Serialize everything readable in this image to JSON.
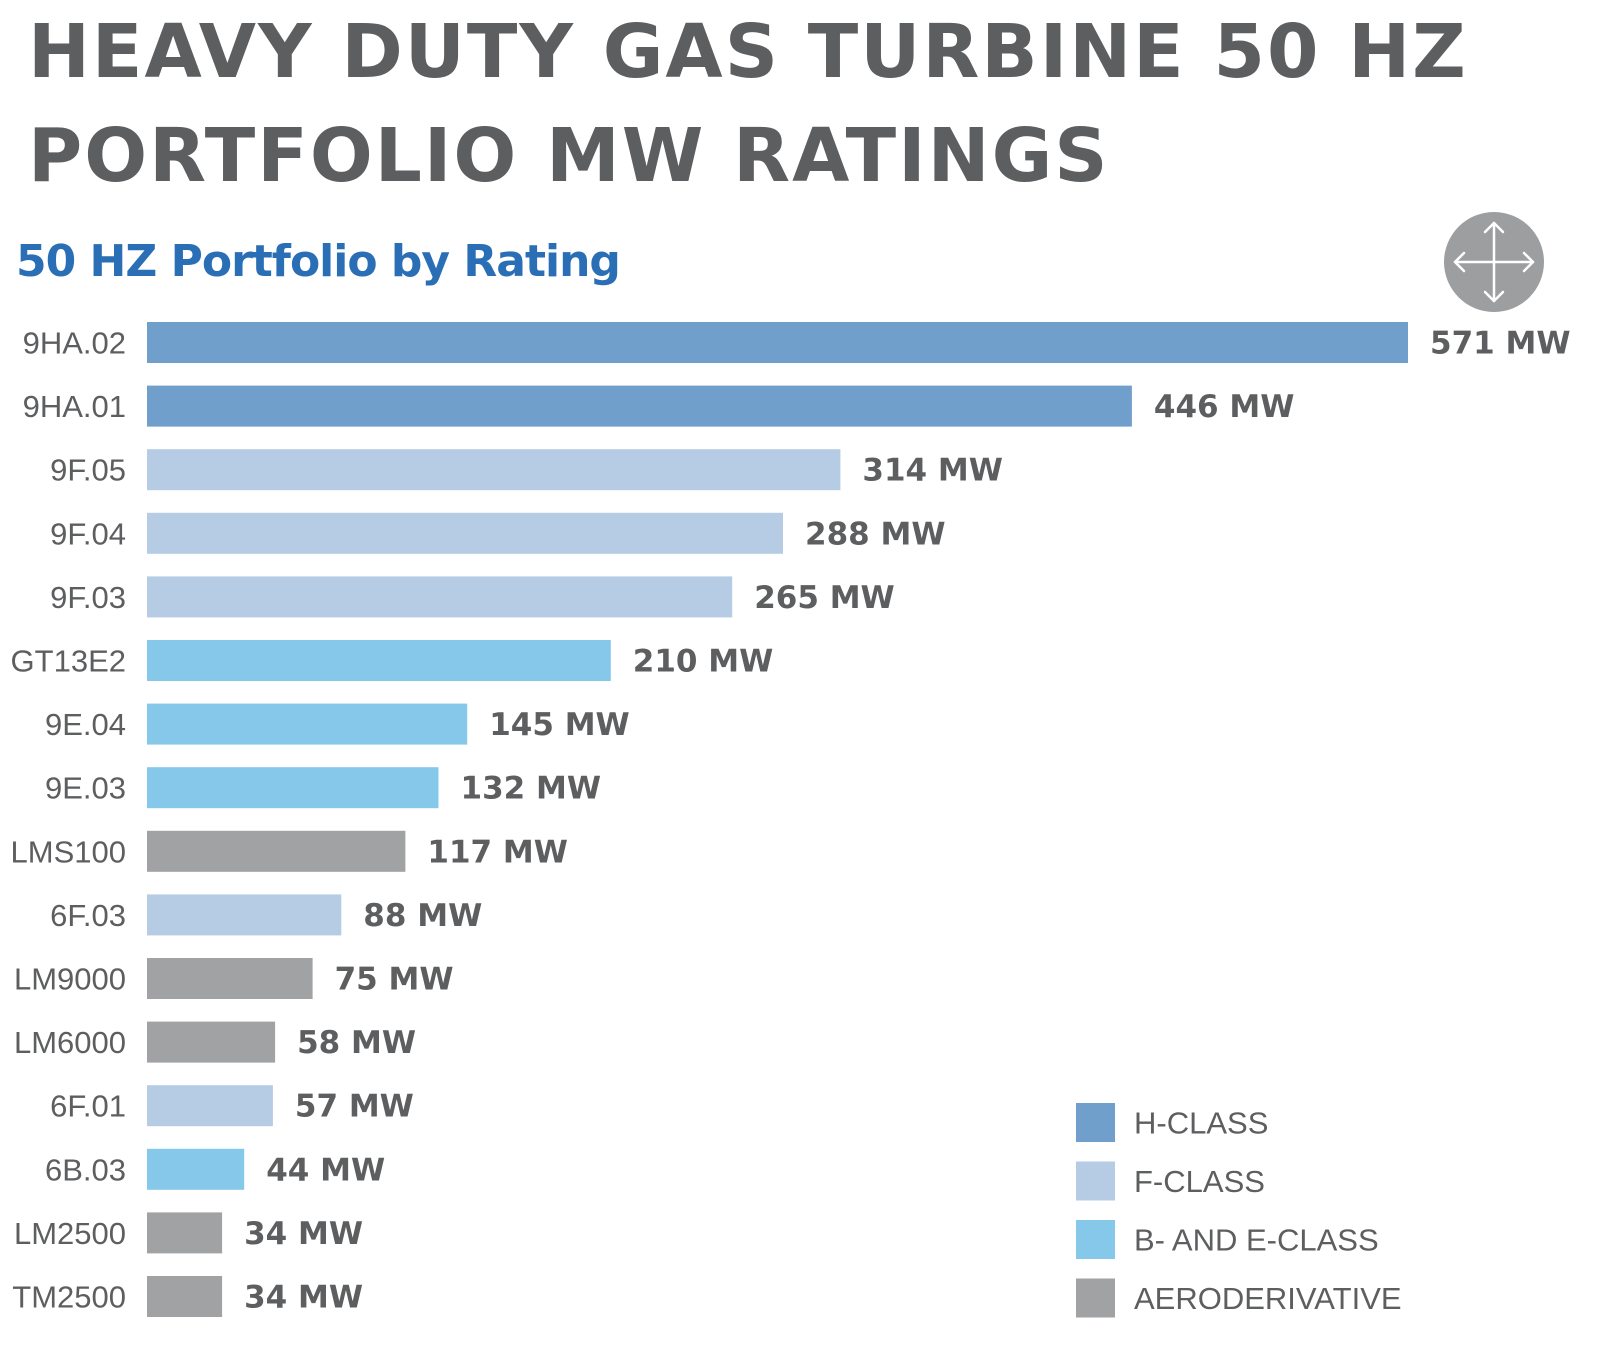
{
  "page": {
    "title_line1": "HEAVY DUTY GAS TURBINE 50 HZ",
    "title_line2": "PORTFOLIO MW RATINGS"
  },
  "icons": {
    "move": "move-arrows-icon"
  },
  "colors": {
    "title": "#5d5e60",
    "subtitle": "#2a6eb5",
    "icon_circle": "#9d9ea0"
  },
  "chart_data": {
    "type": "bar",
    "orientation": "horizontal",
    "title": "50 HZ Portfolio by Rating",
    "xlabel": "",
    "ylabel": "",
    "xlim": [
      0,
      571
    ],
    "unit": "MW",
    "grid": false,
    "legend_position": "bottom-right",
    "categories": [
      "9HA.02",
      "9HA.01",
      "9F.05",
      "9F.04",
      "9F.03",
      "GT13E2",
      "9E.04",
      "9E.03",
      "LMS100",
      "6F.03",
      "LM9000",
      "LM6000",
      "6F.01",
      "6B.03",
      "LM2500",
      "TM2500"
    ],
    "values": [
      571,
      446,
      314,
      288,
      265,
      210,
      145,
      132,
      117,
      88,
      75,
      58,
      57,
      44,
      34,
      34
    ],
    "value_labels": [
      "571 MW",
      "446 MW",
      "314 MW",
      "288 MW",
      "265 MW",
      "210 MW",
      "145 MW",
      "132 MW",
      "117 MW",
      "88 MW",
      "75 MW",
      "58 MW",
      "57 MW",
      "44 MW",
      "34 MW",
      "34 MW"
    ],
    "classes": [
      "h",
      "h",
      "f",
      "f",
      "f",
      "be",
      "be",
      "be",
      "aero",
      "f",
      "aero",
      "aero",
      "f",
      "be",
      "aero",
      "aero"
    ],
    "legend": [
      {
        "key": "h",
        "label": "H-CLASS",
        "color": "#709fcc"
      },
      {
        "key": "f",
        "label": "F-CLASS",
        "color": "#b5cce4"
      },
      {
        "key": "be",
        "label": "B- AND E-CLASS",
        "color": "#86c8ea"
      },
      {
        "key": "aero",
        "label": "AERODERIVATIVE",
        "color": "#a1a2a4"
      }
    ]
  }
}
